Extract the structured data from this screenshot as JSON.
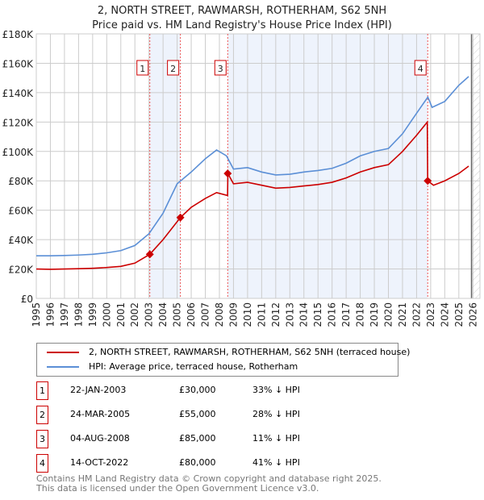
{
  "title": "2, NORTH STREET, RAWMARSH, ROTHERHAM, S62 5NH",
  "subtitle": "Price paid vs. HM Land Registry's House Price Index (HPI)",
  "chart_data": {
    "type": "line",
    "xlim": [
      1995,
      2026.5
    ],
    "ylim": [
      0,
      180000
    ],
    "yticks": [
      0,
      20000,
      40000,
      60000,
      80000,
      100000,
      120000,
      140000,
      160000,
      180000
    ],
    "ytick_labels": [
      "£0",
      "£20K",
      "£40K",
      "£60K",
      "£80K",
      "£100K",
      "£120K",
      "£140K",
      "£160K",
      "£180K"
    ],
    "xticks": [
      1995,
      1996,
      1997,
      1998,
      1999,
      2000,
      2001,
      2002,
      2003,
      2004,
      2005,
      2006,
      2007,
      2008,
      2009,
      2010,
      2011,
      2012,
      2013,
      2014,
      2015,
      2016,
      2017,
      2018,
      2019,
      2020,
      2021,
      2022,
      2023,
      2024,
      2025,
      2026
    ],
    "grid": true,
    "colors": {
      "property": "#cc0000",
      "hpi": "#5b8fd6",
      "shade": "#eef3fc"
    },
    "series": [
      {
        "name": "2, NORTH STREET, RAWMARSH, ROTHERHAM, S62 5NH (terraced house)",
        "points": [
          [
            1995,
            20000
          ],
          [
            1996,
            19800
          ],
          [
            1997,
            20000
          ],
          [
            1998,
            20200
          ],
          [
            1999,
            20500
          ],
          [
            2000,
            21000
          ],
          [
            2001,
            21800
          ],
          [
            2002,
            24000
          ],
          [
            2003.06,
            30000
          ],
          [
            2004,
            40000
          ],
          [
            2005.23,
            55000
          ],
          [
            2006,
            62000
          ],
          [
            2007,
            68000
          ],
          [
            2007.8,
            72000
          ],
          [
            2008.58,
            70000
          ],
          [
            2008.6,
            85000
          ],
          [
            2009,
            78000
          ],
          [
            2010,
            79000
          ],
          [
            2011,
            77000
          ],
          [
            2012,
            75000
          ],
          [
            2013,
            75500
          ],
          [
            2014,
            76500
          ],
          [
            2015,
            77500
          ],
          [
            2016,
            79000
          ],
          [
            2017,
            82000
          ],
          [
            2018,
            86000
          ],
          [
            2019,
            89000
          ],
          [
            2020,
            91000
          ],
          [
            2021,
            100000
          ],
          [
            2022,
            111000
          ],
          [
            2022.76,
            120000
          ],
          [
            2022.79,
            80000
          ],
          [
            2023.2,
            77000
          ],
          [
            2024,
            80000
          ],
          [
            2025,
            85000
          ],
          [
            2025.7,
            90000
          ]
        ]
      },
      {
        "name": "HPI: Average price, terraced house, Rotherham",
        "points": [
          [
            1995,
            29000
          ],
          [
            1996,
            29000
          ],
          [
            1997,
            29200
          ],
          [
            1998,
            29500
          ],
          [
            1999,
            30000
          ],
          [
            2000,
            31000
          ],
          [
            2001,
            32500
          ],
          [
            2002,
            36000
          ],
          [
            2003,
            44000
          ],
          [
            2004,
            58000
          ],
          [
            2005,
            78000
          ],
          [
            2006,
            86000
          ],
          [
            2007,
            95000
          ],
          [
            2007.8,
            101000
          ],
          [
            2008.5,
            97000
          ],
          [
            2009,
            88000
          ],
          [
            2010,
            89000
          ],
          [
            2011,
            86000
          ],
          [
            2012,
            84000
          ],
          [
            2013,
            84500
          ],
          [
            2014,
            86000
          ],
          [
            2015,
            87000
          ],
          [
            2016,
            88500
          ],
          [
            2017,
            92000
          ],
          [
            2018,
            97000
          ],
          [
            2019,
            100000
          ],
          [
            2020,
            102000
          ],
          [
            2021,
            112000
          ],
          [
            2022,
            126000
          ],
          [
            2022.8,
            137000
          ],
          [
            2023.1,
            130000
          ],
          [
            2024,
            134000
          ],
          [
            2025,
            145000
          ],
          [
            2025.7,
            151000
          ]
        ]
      }
    ],
    "sales": [
      {
        "id": "1",
        "x": 2003.06,
        "price": 30000,
        "date": "22-JAN-2003",
        "price_label": "£30,000",
        "hpi": "33% ↓ HPI"
      },
      {
        "id": "2",
        "x": 2005.23,
        "price": 55000,
        "date": "24-MAR-2005",
        "price_label": "£55,000",
        "hpi": "28% ↓ HPI"
      },
      {
        "id": "3",
        "x": 2008.59,
        "price": 85000,
        "date": "04-AUG-2008",
        "price_label": "£85,000",
        "hpi": "11% ↓ HPI"
      },
      {
        "id": "4",
        "x": 2022.79,
        "price": 80000,
        "date": "14-OCT-2022",
        "price_label": "£80,000",
        "hpi": "41% ↓ HPI"
      }
    ],
    "forecast_start": 2025.9
  },
  "footer": [
    "Contains HM Land Registry data © Crown copyright and database right 2025.",
    "This data is licensed under the Open Government Licence v3.0."
  ]
}
